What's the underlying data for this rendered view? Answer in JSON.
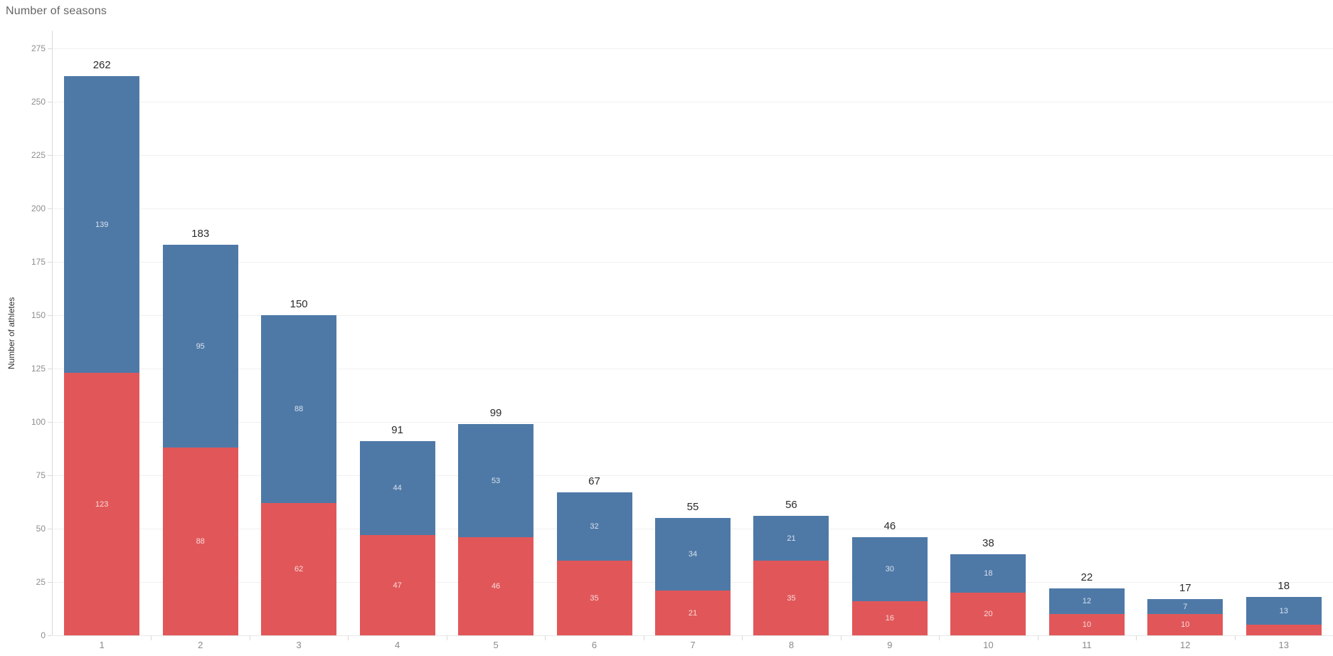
{
  "chart": {
    "title": "Number of seasons",
    "y_axis_label": "Number of athletes"
  },
  "chart_data": {
    "type": "bar",
    "stacked": true,
    "title": "Number of seasons",
    "xlabel": "Number of seasons",
    "ylabel": "Number of athletes",
    "categories": [
      "1",
      "2",
      "3",
      "4",
      "5",
      "6",
      "7",
      "8",
      "9",
      "10",
      "11",
      "12",
      "13"
    ],
    "series": [
      {
        "name": "bottom-red-segment",
        "color": "#e15759",
        "values": [
          123,
          88,
          62,
          47,
          46,
          35,
          21,
          35,
          16,
          20,
          10,
          10,
          5
        ],
        "labels": [
          "123",
          "88",
          "62",
          "47",
          "46",
          "35",
          "21",
          "35",
          "16",
          "20",
          "10",
          "10",
          null
        ]
      },
      {
        "name": "top-blue-segment",
        "color": "#4e79a7",
        "values": [
          139,
          95,
          88,
          44,
          53,
          32,
          34,
          21,
          30,
          18,
          12,
          7,
          13
        ],
        "labels": [
          "139",
          "95",
          "88",
          "44",
          "53",
          "32",
          "34",
          "21",
          "30",
          "18",
          "12",
          "7",
          "13"
        ]
      }
    ],
    "totals": [
      "262",
      "183",
      "150",
      "91",
      "99",
      "67",
      "55",
      "56",
      "46",
      "38",
      "22",
      "17",
      "18"
    ],
    "ylim": [
      0,
      275
    ],
    "ytick_step": 25,
    "yticks": [
      0,
      25,
      50,
      75,
      100,
      125,
      150,
      175,
      200,
      225,
      250,
      275
    ],
    "grid": true,
    "legend": false,
    "colors": {
      "grid": "#f0f0f0",
      "axis": "#d9d9d9",
      "tick_label": "#8e8e8e",
      "total_label": "#2b2b2b",
      "inside_label": "rgba(255,255,255,0.78)"
    }
  }
}
